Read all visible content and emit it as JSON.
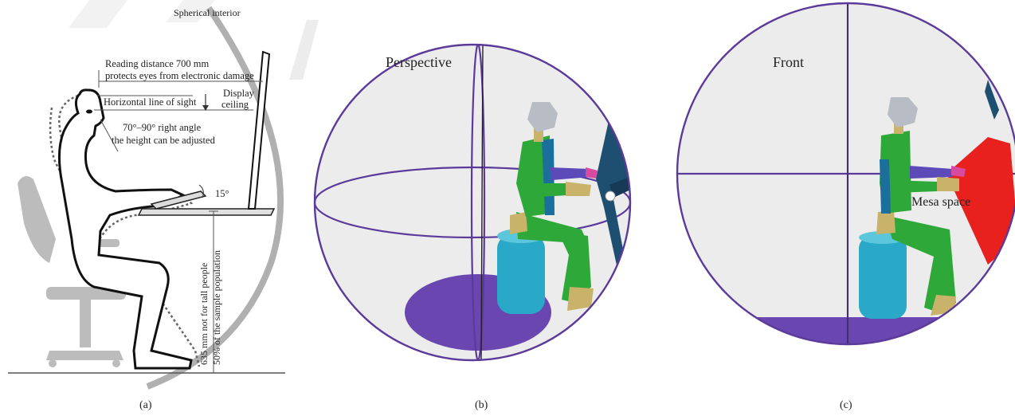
{
  "panel_a": {
    "spherical_interior": "Spherical interior",
    "reading_distance_1": "Reading distance 700 mm",
    "reading_distance_2": "protects eyes from electronic damage",
    "display_ceiling_1": "Display",
    "display_ceiling_2": "ceiling",
    "horizontal_line": "Horizontal line of sight",
    "angle_1": "70°–90° right angle",
    "angle_2": "the height can be adjusted",
    "tilt": "15°",
    "height_1": "635 mm not for tall people",
    "height_2": "50% of the sample population",
    "caption": "(a)"
  },
  "panel_b": {
    "view_label": "Perspective",
    "caption": "(b)"
  },
  "panel_c": {
    "view_label": "Front",
    "mesa_label": "Mesa space",
    "caption": "(c)"
  },
  "colors": {
    "sphere_outline": "#5b3a9a",
    "floor_disc": "#6a46b0",
    "body_green": "#2fa83a",
    "body_blue": "#1a6f9c",
    "seat_cyan": "#2aa8c8",
    "head_gray": "#b8bcc4",
    "screen_teal": "#1f4f70",
    "mesa_red": "#e8211e",
    "hands_pink": "#d84aa0",
    "skin_tan": "#c9b36a",
    "chair_gray": "#b5b5b5",
    "sphere_fill": "#ececec"
  }
}
